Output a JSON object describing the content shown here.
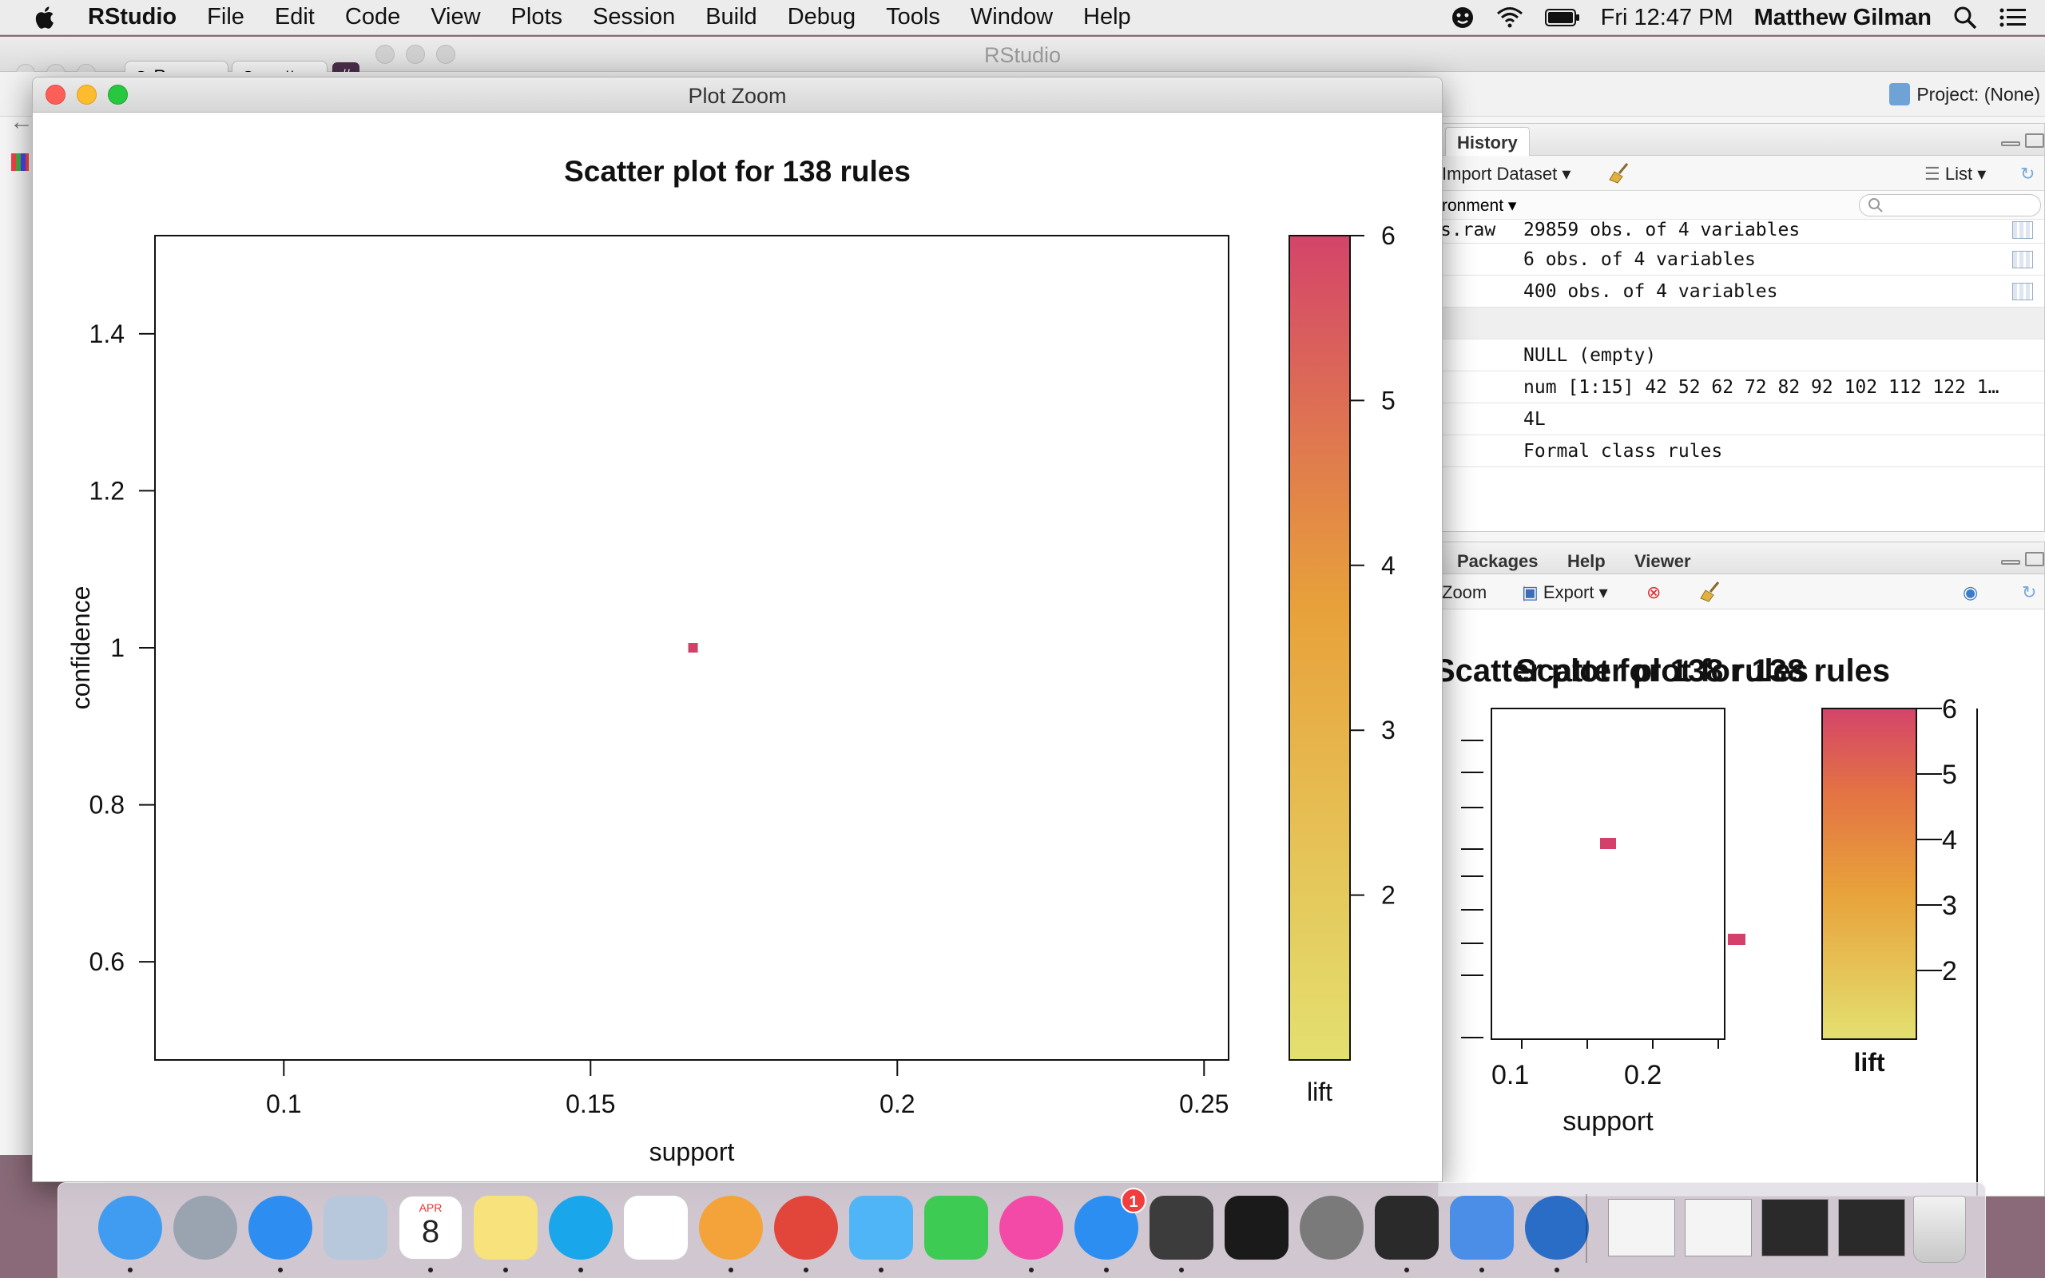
{
  "menubar": {
    "app_name": "RStudio",
    "menus": [
      "File",
      "Edit",
      "Code",
      "View",
      "Plots",
      "Session",
      "Build",
      "Debug",
      "Tools",
      "Window",
      "Help"
    ],
    "clock": "Fri 12:47 PM",
    "user": "Matthew Gilman",
    "status_icons": [
      "theater-masks-icon",
      "wifi-icon",
      "battery-icon"
    ],
    "right_icons": [
      "spotlight-search-icon",
      "notification-center-icon"
    ]
  },
  "rstudio": {
    "window_title": "RStudio",
    "project_label": "Project: (None)",
    "browser_tab_fragments": [
      "Reps",
      "matt"
    ],
    "env_pane": {
      "tab": "History",
      "toolbar_import": "Import Dataset",
      "toolbar_list": "List",
      "environment_dropdown": "ronment",
      "rows": [
        {
          "name": "s.raw",
          "value": "29859 obs. of 4 variables",
          "has_grid": true
        },
        {
          "name": "",
          "value": "6 obs. of 4 variables",
          "has_grid": true
        },
        {
          "name": "",
          "value": "400 obs. of 4 variables",
          "has_grid": true
        },
        {
          "name": "",
          "value": "",
          "has_grid": false,
          "section": true
        },
        {
          "name": "",
          "value": "NULL (empty)",
          "has_grid": false
        },
        {
          "name": "",
          "value": "num [1:15] 42 52 62 72 82 92 102 112 122 1…",
          "has_grid": false
        },
        {
          "name": "",
          "value": "4L",
          "has_grid": false
        },
        {
          "name": "",
          "value": "Formal class rules",
          "has_grid": false
        }
      ]
    },
    "plot_pane": {
      "tabs": [
        "Packages",
        "Help",
        "Viewer"
      ],
      "toolbar_zoom": "Zoom",
      "toolbar_export": "Export",
      "overlapping_title_a": "Scatter plot for 138 rules",
      "overlapping_title_b": "Scatter plot for 138 rules",
      "x_label": "support",
      "x_ticks": [
        "0.1",
        "0.2"
      ],
      "legend_ticks": [
        "6",
        "5",
        "4",
        "3",
        "2"
      ],
      "legend_label": "lift"
    }
  },
  "zoom_window": {
    "title": "Plot Zoom"
  },
  "chart_data": {
    "type": "scatter",
    "title": "Scatter plot for 138 rules",
    "xlabel": "support",
    "ylabel": "confidence",
    "xlim": [
      0.079,
      0.254
    ],
    "ylim": [
      0.475,
      1.525
    ],
    "x_ticks": [
      0.1,
      0.15,
      0.2,
      0.25
    ],
    "x_tick_labels": [
      "0.1",
      "0.15",
      "0.2",
      "0.25"
    ],
    "y_ticks": [
      0.6,
      0.8,
      1.0,
      1.2,
      1.4
    ],
    "y_tick_labels": [
      "0.6",
      "0.8",
      "1",
      "1.2",
      "1.4"
    ],
    "points": [
      {
        "x": 0.1667,
        "y": 1.0,
        "lift": 6
      }
    ],
    "colorbar": {
      "label": "lift",
      "range": [
        1.0,
        6.0
      ],
      "ticks": [
        2,
        3,
        4,
        5,
        6
      ],
      "tick_labels": [
        "2",
        "3",
        "4",
        "5",
        "6"
      ],
      "color_low": "#e3e070",
      "color_mid": "#e8a13a",
      "color_high": "#d4446a"
    },
    "grid": false,
    "marker_color": "#d4406a"
  },
  "dock": {
    "apps": [
      {
        "name": "finder-icon",
        "color": "#3f9cf0",
        "running": true
      },
      {
        "name": "launchpad-icon",
        "color": "#9aa4b0",
        "running": false
      },
      {
        "name": "safari-icon",
        "color": "#2e8df0",
        "running": true
      },
      {
        "name": "mail-eagle-icon",
        "color": "#b8c8dc",
        "running": false
      },
      {
        "name": "calendar-icon",
        "color": "#ffffff",
        "running": true,
        "label_month": "APR",
        "label_day": "8"
      },
      {
        "name": "notes-icon",
        "color": "#f7e27c",
        "running": true
      },
      {
        "name": "skype-icon",
        "color": "#1aa6ea",
        "running": true
      },
      {
        "name": "reminders-icon",
        "color": "#ffffff",
        "running": false
      },
      {
        "name": "photos-icon",
        "color": "#f3a33a",
        "running": true
      },
      {
        "name": "chrome-icon",
        "color": "#e2463b",
        "running": true
      },
      {
        "name": "messages-icon",
        "color": "#4fb5f7",
        "running": true
      },
      {
        "name": "facetime-icon",
        "color": "#3dcb54",
        "running": false
      },
      {
        "name": "itunes-icon",
        "color": "#f24aa6",
        "running": true
      },
      {
        "name": "app-store-icon",
        "color": "#2b8ef0",
        "running": true,
        "badge": "1"
      },
      {
        "name": "sublime-text-icon",
        "color": "#3c3c3c",
        "running": true
      },
      {
        "name": "terminal-icon",
        "color": "#1a1a1a",
        "running": false
      },
      {
        "name": "system-preferences-icon",
        "color": "#7a7a7a",
        "running": false
      },
      {
        "name": "activity-monitor-icon",
        "color": "#2a2a2a",
        "running": true
      },
      {
        "name": "keynote-icon",
        "color": "#4a8ee8",
        "running": true
      },
      {
        "name": "r-icon",
        "color": "#2a6dc6",
        "running": true
      }
    ],
    "minimized": [
      "window-thumbnail-1",
      "window-thumbnail-2",
      "window-thumbnail-3",
      "window-thumbnail-4"
    ],
    "trash": "trash-icon"
  }
}
